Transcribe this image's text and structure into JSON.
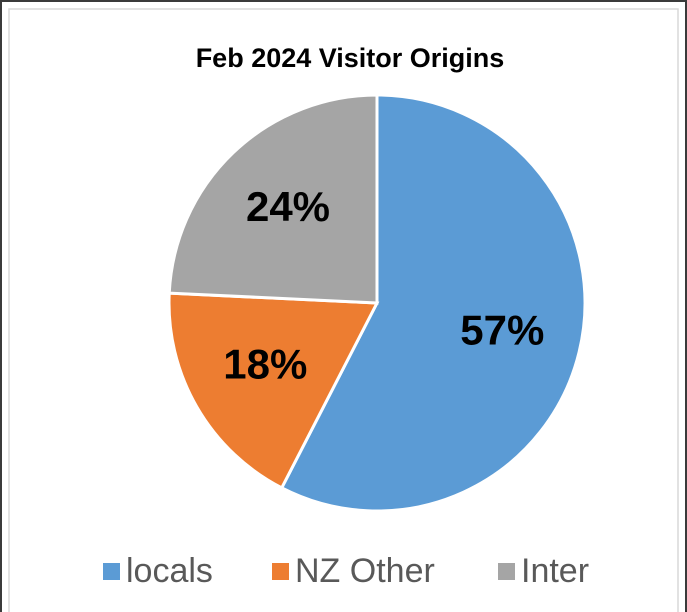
{
  "chart_data": {
    "type": "pie",
    "title": "Feb 2024 Visitor Origins",
    "categories": [
      "locals",
      "NZ Other",
      "Inter"
    ],
    "values": [
      57,
      18,
      24
    ],
    "value_labels": [
      "57%",
      "18%",
      "24%"
    ],
    "colors": [
      "#5b9bd5",
      "#ed7d31",
      "#a5a5a5"
    ],
    "legend": "bottom"
  }
}
